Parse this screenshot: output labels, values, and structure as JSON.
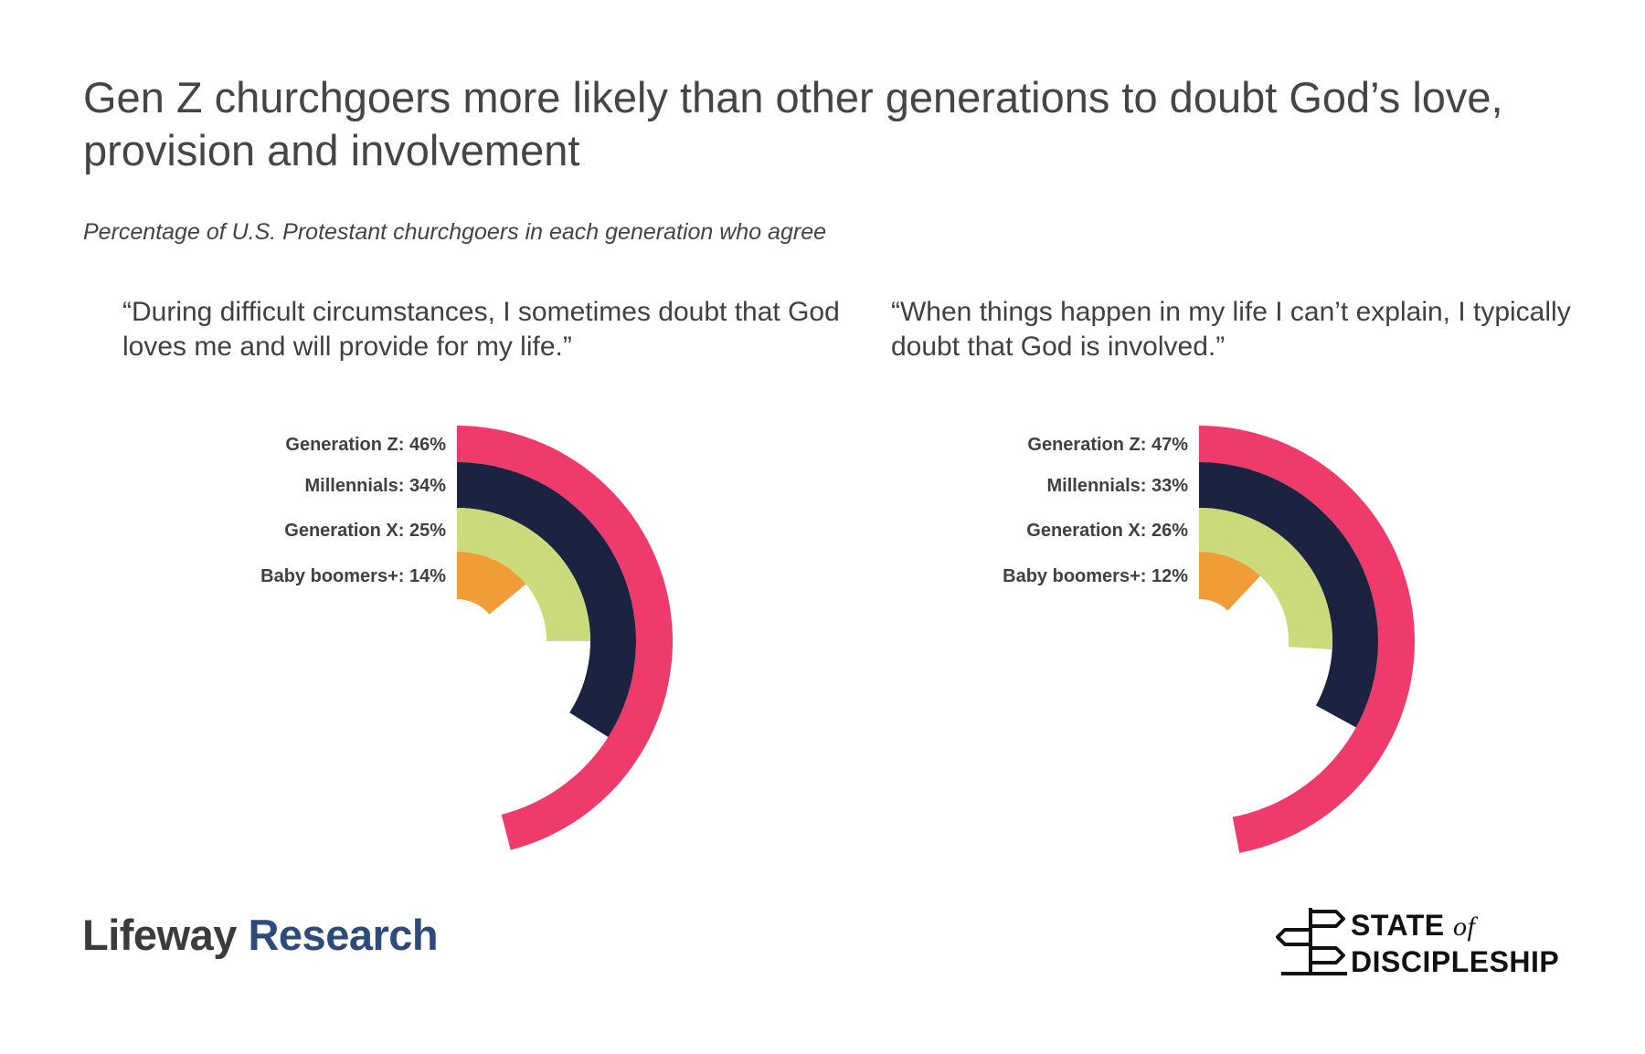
{
  "title": "Gen Z churchgoers more likely than other generations to doubt God’s love, provision and involvement",
  "subtitle": "Percentage of  U.S. Protestant churchgoers in each generation who agree",
  "chart_data": [
    {
      "type": "radial-bar",
      "title": "“During difficult circumstances, I sometimes doubt that God loves me and will provide for my life.”",
      "labels": [
        "Generation Z: 46%",
        "Millennials: 34%",
        "Generation X: 25%",
        "Baby boomers+: 14%"
      ],
      "categories": [
        "Generation Z",
        "Millennials",
        "Generation X",
        "Baby boomers+"
      ],
      "values": [
        46,
        34,
        25,
        14
      ],
      "unit": "%",
      "colors": [
        "#ef3a6c",
        "#1c2340",
        "#cbdb7b",
        "#f19d37"
      ]
    },
    {
      "type": "radial-bar",
      "title": "“When things happen in my life I can’t explain, I typically doubt that God is involved.”",
      "labels": [
        "Generation Z: 47%",
        "Millennials: 33%",
        "Generation X: 26%",
        "Baby boomers+: 12%"
      ],
      "categories": [
        "Generation Z",
        "Millennials",
        "Generation X",
        "Baby boomers+"
      ],
      "values": [
        47,
        33,
        26,
        12
      ],
      "unit": "%",
      "colors": [
        "#ef3a6c",
        "#1c2340",
        "#cbdb7b",
        "#f19d37"
      ]
    }
  ],
  "logos": {
    "lifeway_word": "Lifeway",
    "research_word": "Research",
    "sod_line1": "STATE",
    "sod_of": "of",
    "sod_line2": "DISCIPLESHIP"
  }
}
